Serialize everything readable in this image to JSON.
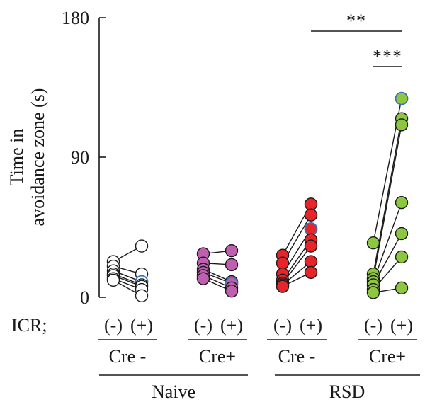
{
  "chart_data": {
    "type": "scatter",
    "style": "paired before-after dot plot",
    "ylabel_line1": "Time in",
    "ylabel_line2": "avoidance zone (s)",
    "ylim": [
      0,
      180
    ],
    "yticks": [
      "0",
      "90",
      "180"
    ],
    "row_label": "ICR;",
    "icr_minus": "(-)",
    "icr_plus": "(+)",
    "cre_labels": [
      "Cre -",
      "Cre+",
      "Cre -",
      "Cre+"
    ],
    "condition_labels": [
      "Naive",
      "RSD"
    ],
    "groups": [
      {
        "condition": "Naive",
        "cre": "Cre -",
        "fill": "#ffffff",
        "pairs": [
          [
            23,
            33
          ],
          [
            20,
            15
          ],
          [
            17,
            10
          ],
          [
            15,
            8
          ],
          [
            14,
            7
          ],
          [
            12,
            5
          ],
          [
            11,
            1
          ]
        ]
      },
      {
        "condition": "Naive",
        "cre": "Cre+",
        "fill": "#bf5fb0",
        "pairs": [
          [
            28,
            30
          ],
          [
            22,
            21
          ],
          [
            18,
            10
          ],
          [
            16,
            9
          ],
          [
            14,
            6
          ],
          [
            12,
            4
          ]
        ]
      },
      {
        "condition": "RSD",
        "cre": "Cre -",
        "fill": "#e8242b",
        "pairs": [
          [
            27,
            60
          ],
          [
            22,
            53
          ],
          [
            15,
            44
          ],
          [
            11,
            37
          ],
          [
            9,
            33
          ],
          [
            8,
            23
          ],
          [
            7,
            16
          ]
        ]
      },
      {
        "condition": "RSD",
        "cre": "Cre+",
        "fill": "#8dc63f",
        "pairs": [
          [
            35,
            128
          ],
          [
            15,
            115
          ],
          [
            12,
            111
          ],
          [
            10,
            61
          ],
          [
            8,
            41
          ],
          [
            5,
            26
          ],
          [
            3,
            6
          ]
        ]
      }
    ],
    "significance": [
      {
        "label": "**",
        "from": "RSD Cre - (+)",
        "to": "RSD Cre+ (+)"
      },
      {
        "label": "***",
        "from": "RSD Cre+ (-)",
        "to": "RSD Cre+ (+)"
      }
    ],
    "colors": {
      "outline": "#1a1a1a",
      "highlight_outline": "#3a72b8"
    }
  }
}
